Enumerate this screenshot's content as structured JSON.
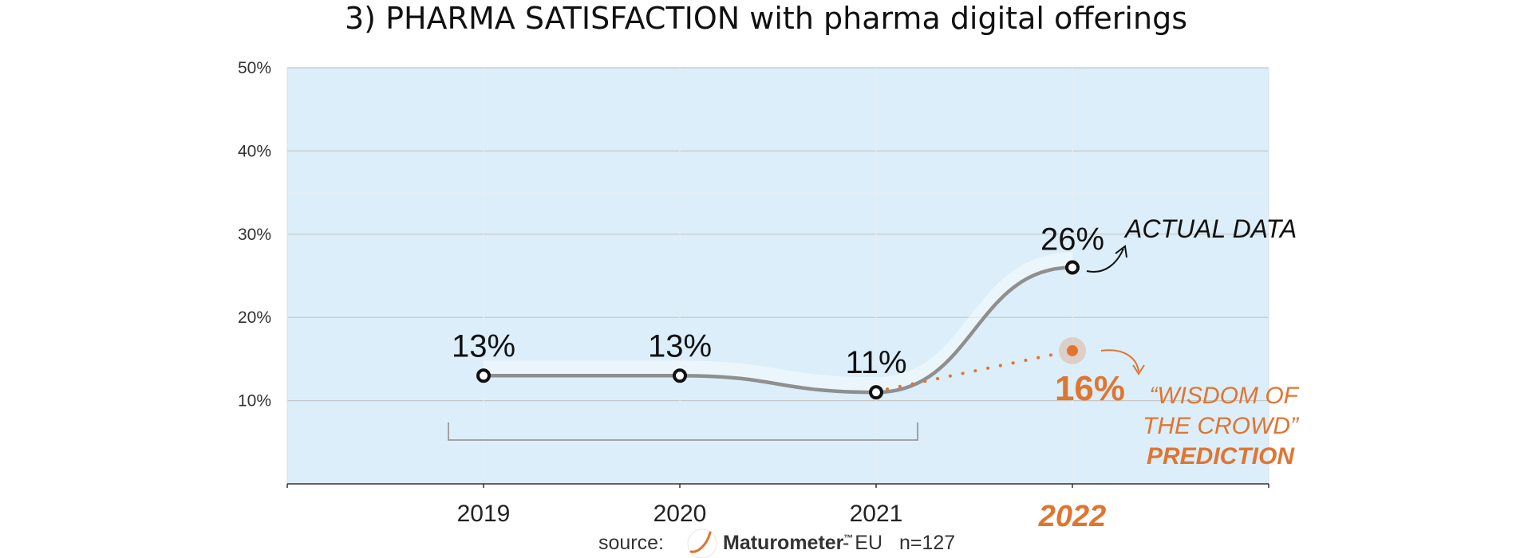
{
  "colors": {
    "plot_bg": "#dbeefa",
    "grid": "#c6c6c6",
    "line": "#8f8f8f",
    "accent": "#e07530",
    "text": "#111111"
  },
  "chart_data": {
    "type": "line",
    "title": "3) PHARMA SATISFACTION with pharma digital offerings",
    "xlabel": "",
    "ylabel": "",
    "categories": [
      "2019",
      "2020",
      "2021",
      "2022"
    ],
    "highlight_category": "2022",
    "ylim": [
      0,
      50
    ],
    "yticks": [
      10,
      20,
      30,
      40,
      50
    ],
    "ytick_labels": [
      "10%",
      "20%",
      "30%",
      "40%",
      "50%"
    ],
    "grid": true,
    "series": [
      {
        "values": [
          13,
          13,
          11,
          26
        ],
        "labels": [
          "13%",
          "13%",
          "11%",
          "26%"
        ]
      }
    ],
    "prediction": {
      "from_category": "2021",
      "from_value": 11,
      "category": "2022",
      "value": 16,
      "label": "16%"
    },
    "annotations": {
      "actual": "ACTUAL DATA",
      "prediction_lines": [
        "“WISDOM OF",
        "THE CROWD”",
        "PREDICTION"
      ]
    }
  },
  "source": {
    "prefix": "source:",
    "brand": "Maturometer",
    "trademark": "™",
    "region": "- EU",
    "n": "n=127"
  }
}
